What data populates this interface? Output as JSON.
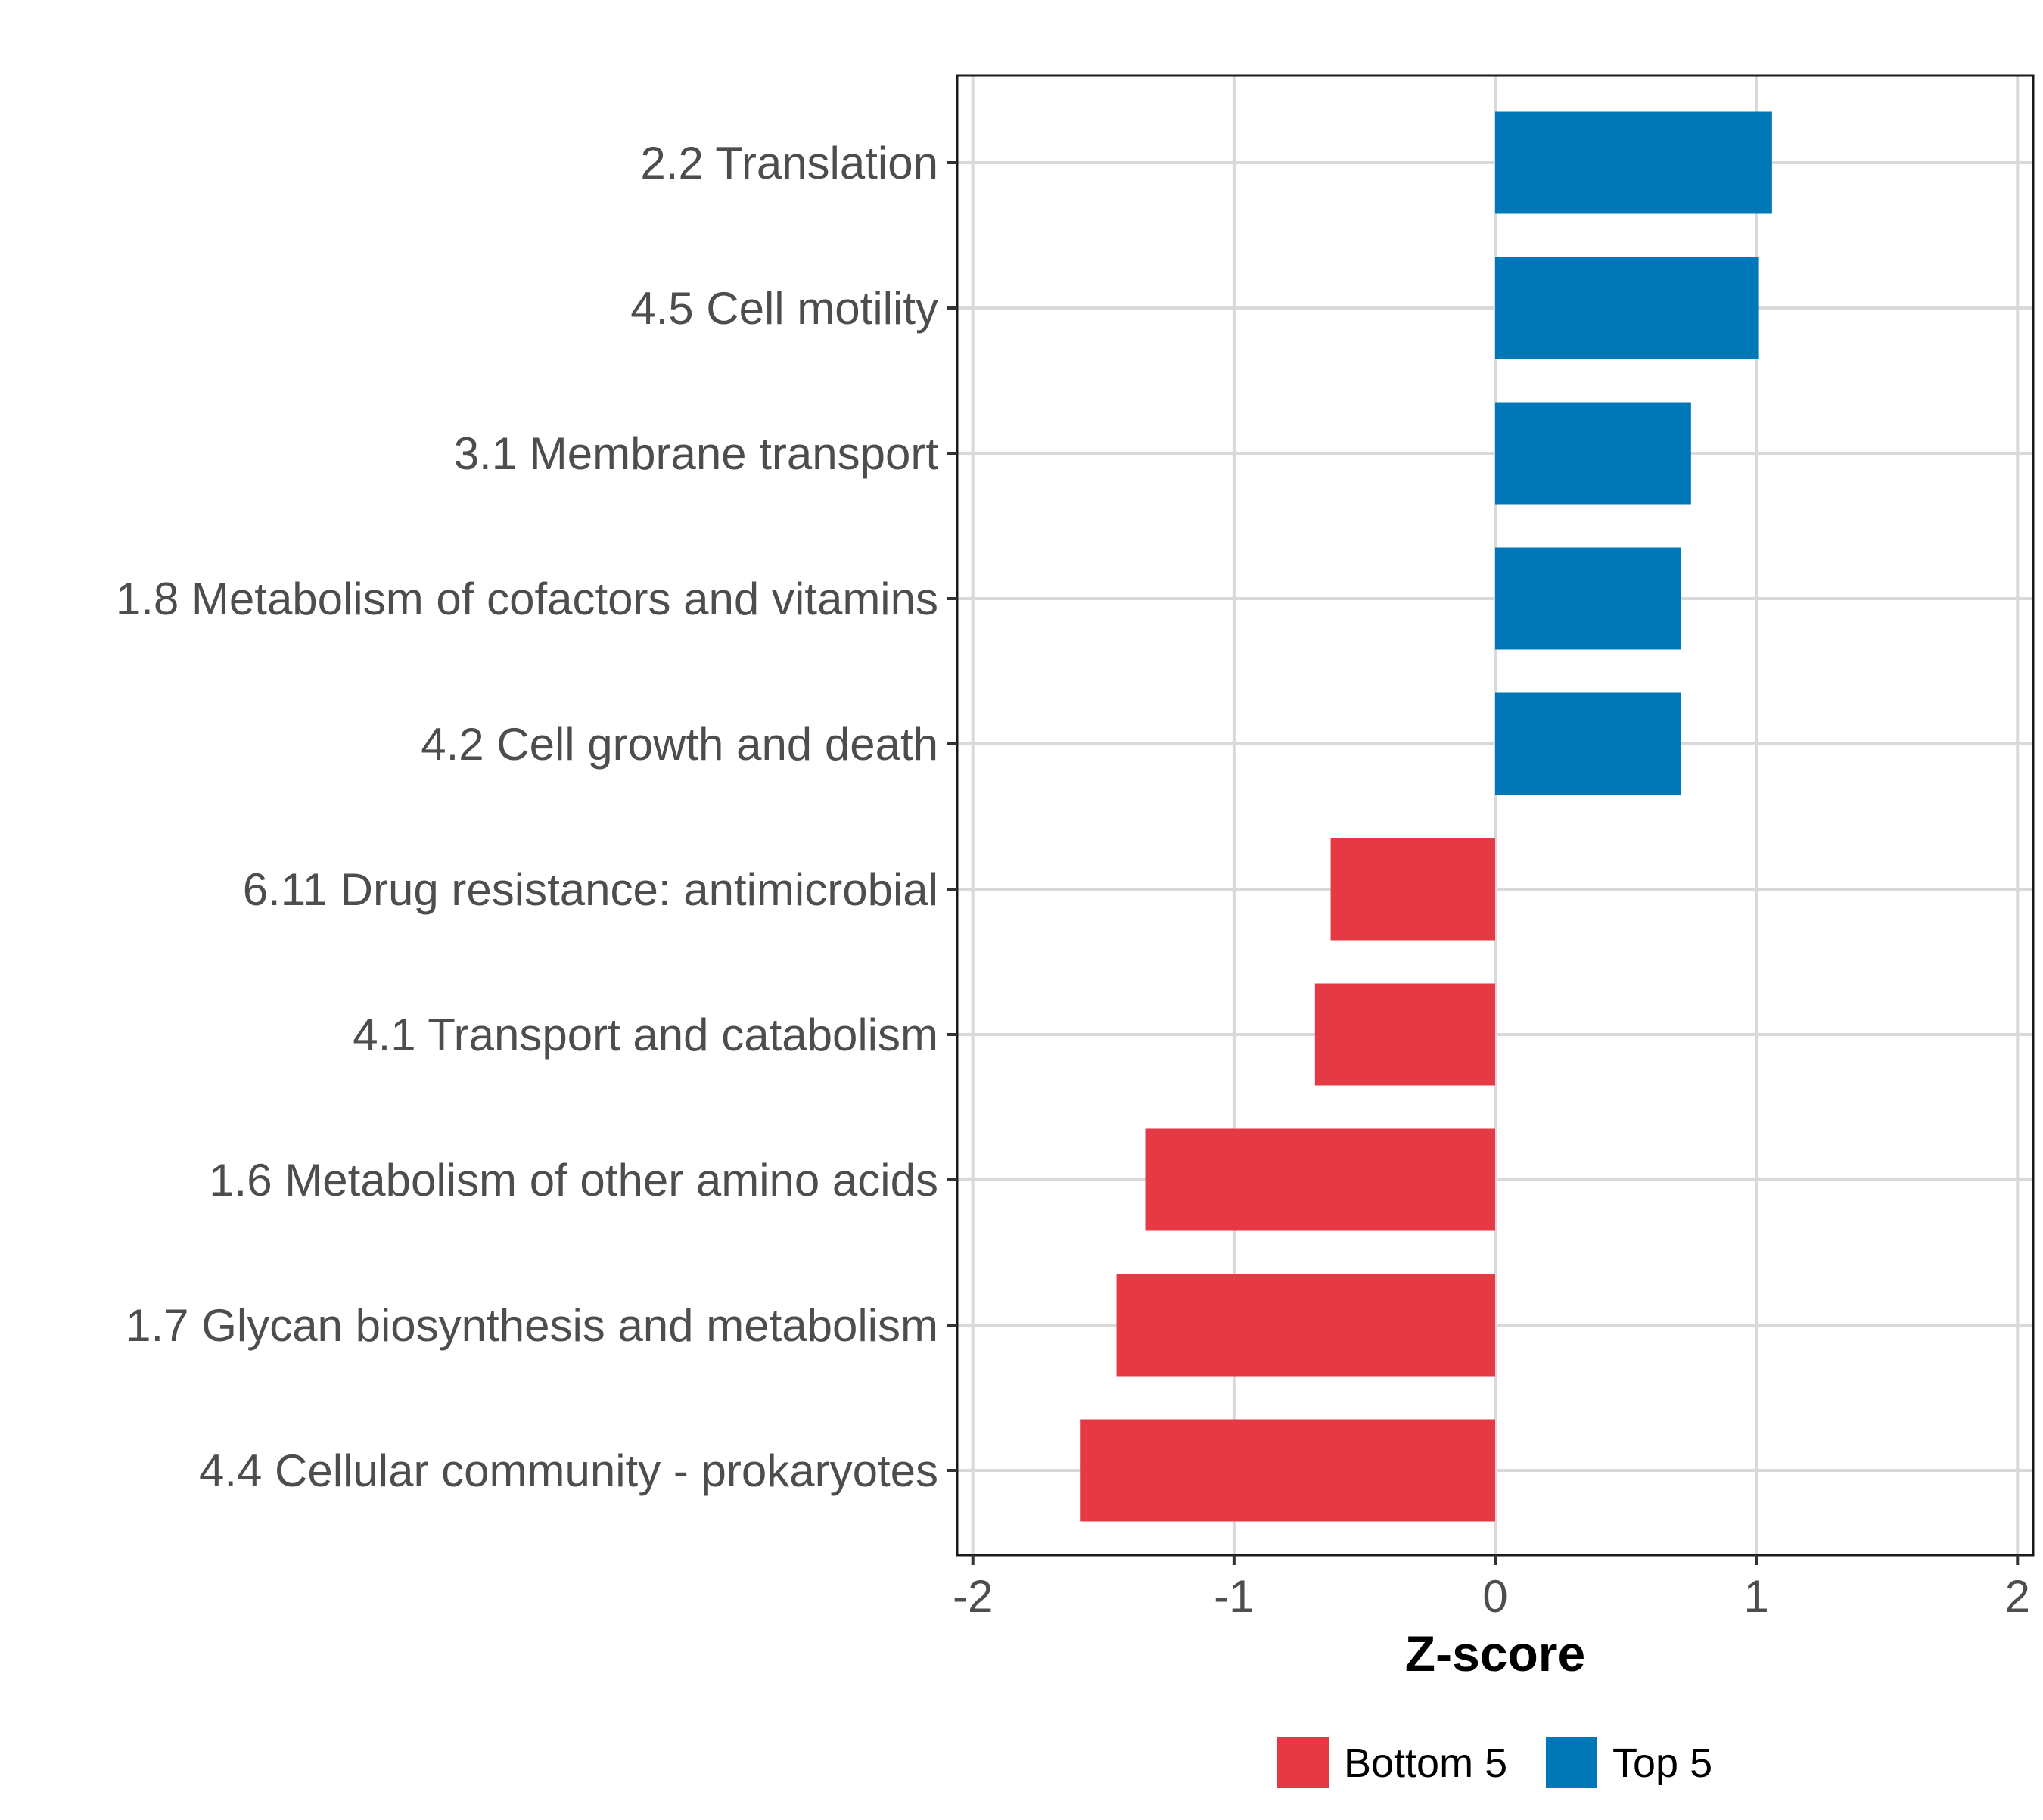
{
  "chart_data": {
    "type": "bar",
    "orientation": "horizontal",
    "categories": [
      "2.2 Translation",
      "4.5 Cell motility",
      "3.1 Membrane transport",
      "1.8 Metabolism of cofactors and vitamins",
      "4.2 Cell growth and death",
      "6.11 Drug resistance: antimicrobial",
      "4.1 Transport and catabolism",
      "1.6 Metabolism of other amino acids",
      "1.7 Glycan biosynthesis and metabolism",
      "4.4 Cellular community - prokaryotes"
    ],
    "values": [
      1.06,
      1.01,
      0.75,
      0.71,
      0.71,
      -0.63,
      -0.69,
      -1.34,
      -1.45,
      -1.59
    ],
    "groups": [
      "Top 5",
      "Top 5",
      "Top 5",
      "Top 5",
      "Top 5",
      "Bottom 5",
      "Bottom 5",
      "Bottom 5",
      "Bottom 5",
      "Bottom 5"
    ],
    "xlabel": "Z-score",
    "ylabel": "",
    "xlim": [
      -2.06,
      2.06
    ],
    "xticks": [
      -2,
      -1,
      0,
      1,
      2
    ],
    "xtick_labels": [
      "-2",
      "-1",
      "0",
      "1",
      "2"
    ],
    "grid": true,
    "legend": {
      "position": "bottom",
      "entries": [
        {
          "name": "Bottom 5",
          "color": "#e63946"
        },
        {
          "name": "Top 5",
          "color": "#0077b6"
        }
      ]
    }
  }
}
